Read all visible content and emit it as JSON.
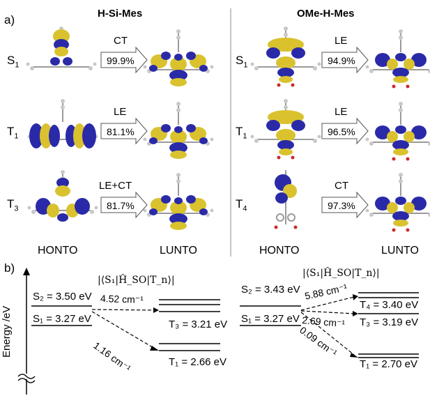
{
  "panel_a": {
    "label": "a)",
    "left": {
      "title": "H-Si-Mes",
      "rows": [
        {
          "state": "S",
          "sub": "1",
          "type": "CT",
          "pct": "99.9%"
        },
        {
          "state": "T",
          "sub": "1",
          "type": "LE",
          "pct": "81.1%"
        },
        {
          "state": "T",
          "sub": "3",
          "type": "LE+CT",
          "pct": "81.7%"
        }
      ],
      "bottom_left": "HONTO",
      "bottom_right": "LUNTO"
    },
    "right": {
      "title": "OMe-H-Mes",
      "rows": [
        {
          "state": "S",
          "sub": "1",
          "type": "LE",
          "pct": "94.9%"
        },
        {
          "state": "T",
          "sub": "1",
          "type": "LE",
          "pct": "96.5%"
        },
        {
          "state": "T",
          "sub": "4",
          "type": "CT",
          "pct": "97.3%"
        }
      ],
      "bottom_left": "HONTO",
      "bottom_right": "LUNTO"
    }
  },
  "panel_b": {
    "label": "b)",
    "axis_label": "Energy /eV",
    "soc_label": "|⟨S₁|Ĥ_SO|T_n⟩|",
    "left": {
      "s2": "S₂ = 3.50 eV",
      "s1": "S₁ = 3.27 eV",
      "t3": "T₃ = 3.21 eV",
      "t1": "T₁ = 2.66 eV",
      "c1": "4.52 cm⁻¹",
      "c2": "1.16 cm⁻¹"
    },
    "right": {
      "s2": "S₂ = 3.43 eV",
      "s1": "S₁ = 3.27 eV",
      "t4": "T₄ = 3.40 eV",
      "t3": "T₃ = 3.19 eV",
      "t1": "T₁ = 2.70 eV",
      "c1": "5.88 cm⁻¹",
      "c2": "2.69 cm⁻¹",
      "c3": "0.09 cm⁻¹"
    }
  },
  "colors": {
    "lobe_yellow": "#d9c22e",
    "lobe_blue": "#2a2aa8",
    "atom": "#9a9a9a",
    "oxygen": "#cc2a2a"
  }
}
